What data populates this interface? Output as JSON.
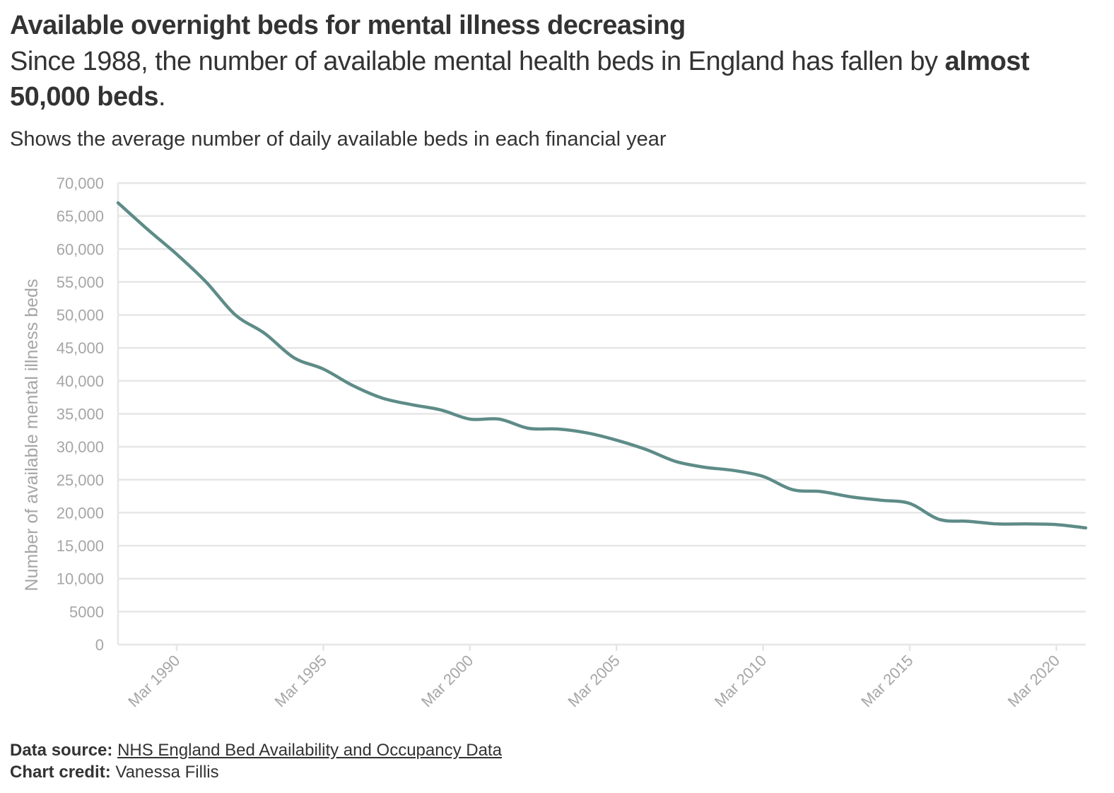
{
  "header": {
    "title": "Available overnight beds for mental illness decreasing",
    "subtitle_prefix": "Since 1988, the number of available mental health beds in England has fallen by ",
    "subtitle_bold": "almost 50,000 beds",
    "subtitle_suffix": ".",
    "description": "Shows the average number of daily available beds in each financial year"
  },
  "footer": {
    "source_label": "Data source:",
    "source_link": "NHS England Bed Availability and Occupancy Data",
    "credit_label": "Chart credit:",
    "credit_name": "Vanessa Fillis"
  },
  "colors": {
    "line": "#5e8c88",
    "grid": "#e6e6e6",
    "axis_text": "#a6a6a6"
  },
  "chart_data": {
    "type": "line",
    "title": "Available overnight beds for mental illness decreasing",
    "xlabel": "",
    "ylabel": "Number of available mental illness beds",
    "ylim": [
      0,
      70000
    ],
    "yticks": [
      0,
      5000,
      10000,
      15000,
      20000,
      25000,
      30000,
      35000,
      40000,
      45000,
      50000,
      55000,
      60000,
      65000,
      70000
    ],
    "ytick_labels": [
      "0",
      "5000",
      "10,000",
      "15,000",
      "20,000",
      "25,000",
      "30,000",
      "35,000",
      "40,000",
      "45,000",
      "50,000",
      "55,000",
      "60,000",
      "65,000",
      "70,000"
    ],
    "xlim": [
      "1988-03",
      "2021-03"
    ],
    "xticks": [
      "1990-03",
      "1995-03",
      "2000-03",
      "2005-03",
      "2010-03",
      "2015-03",
      "2020-03"
    ],
    "xtick_labels": [
      "Mar 1990",
      "Mar 1995",
      "Mar 2000",
      "Mar 2005",
      "Mar 2010",
      "Mar 2015",
      "Mar 2020"
    ],
    "grid": true,
    "series": [
      {
        "name": "",
        "x": [
          "1988-03",
          "1989-03",
          "1990-03",
          "1991-03",
          "1992-03",
          "1993-03",
          "1994-03",
          "1995-03",
          "1996-03",
          "1997-03",
          "1998-03",
          "1999-03",
          "2000-03",
          "2001-03",
          "2002-03",
          "2003-03",
          "2004-03",
          "2005-03",
          "2006-03",
          "2007-03",
          "2008-03",
          "2009-03",
          "2010-03",
          "2011-03",
          "2012-03",
          "2013-03",
          "2014-03",
          "2015-03",
          "2016-03",
          "2017-03",
          "2018-03",
          "2019-03",
          "2020-03",
          "2021-03"
        ],
        "values": [
          67000,
          63000,
          59200,
          55000,
          50000,
          47200,
          43500,
          41800,
          39300,
          37400,
          36400,
          35600,
          34200,
          34200,
          32800,
          32700,
          32100,
          31000,
          29600,
          27800,
          26900,
          26400,
          25500,
          23500,
          23200,
          22400,
          21900,
          21400,
          19000,
          18700,
          18300,
          18300,
          18200,
          17700
        ]
      }
    ]
  }
}
